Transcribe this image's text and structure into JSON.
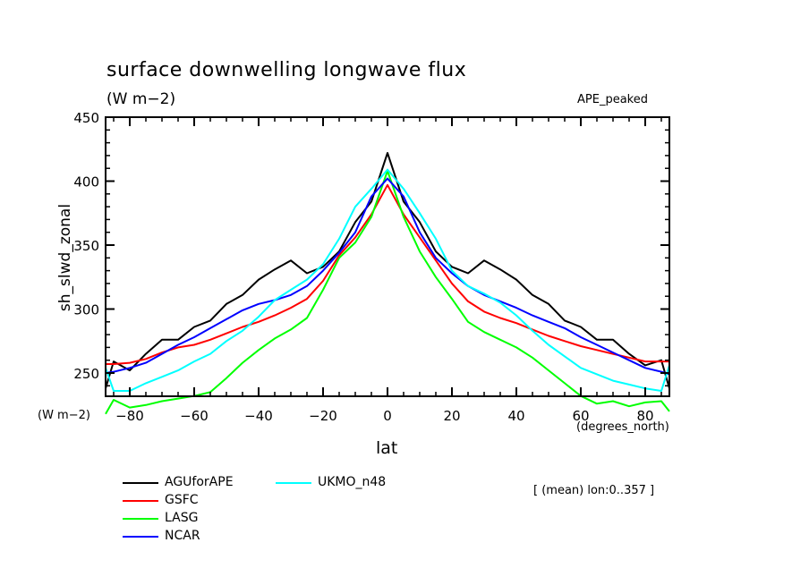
{
  "header": {
    "title": "surface downwelling longwave flux",
    "units": "(W m−2)",
    "dataset": "APE_peaked"
  },
  "footer": {
    "note": "[ (mean) lon:0..357 ]"
  },
  "chart_data": {
    "type": "line",
    "title": "surface downwelling longwave flux",
    "subtitle": "(W m−2)",
    "xlabel": "lat",
    "xunits": "(degrees_north)",
    "ylabel": "sh_slwd_zonal",
    "yunits": "(W m−2)",
    "xlim": [
      -87.5,
      87.5
    ],
    "ylim": [
      232,
      450
    ],
    "xticks": [
      -80,
      -60,
      -40,
      -20,
      0,
      20,
      40,
      60,
      80
    ],
    "xtick_labels": [
      "−80",
      "−60",
      "−40",
      "−20",
      "0",
      "20",
      "40",
      "60",
      "80"
    ],
    "yticks": [
      250,
      300,
      350,
      400,
      450
    ],
    "ytick_labels": [
      "250",
      "300",
      "350",
      "400",
      "450"
    ],
    "grid": false,
    "legend_position": "bottom-left",
    "x": [
      -87.5,
      -85,
      -80,
      -75,
      -70,
      -65,
      -60,
      -55,
      -50,
      -45,
      -40,
      -35,
      -30,
      -25,
      -20,
      -15,
      -10,
      -5,
      0,
      5,
      10,
      15,
      20,
      25,
      30,
      35,
      40,
      45,
      50,
      55,
      60,
      65,
      70,
      75,
      80,
      85,
      87.5
    ],
    "series": [
      {
        "name": "AGUforAPE",
        "color": "#000000",
        "values": [
          238,
          259,
          252,
          265,
          276,
          276,
          286,
          291,
          304,
          311,
          323,
          331,
          338,
          328,
          333,
          345,
          368,
          384,
          422,
          384,
          368,
          345,
          333,
          328,
          338,
          331,
          323,
          311,
          304,
          291,
          286,
          276,
          276,
          265,
          256,
          260,
          238
        ]
      },
      {
        "name": "GSFC",
        "color": "#ff0000",
        "values": [
          257,
          257,
          258,
          261,
          266,
          270,
          272,
          276,
          281,
          286,
          290,
          295,
          301,
          308,
          322,
          342,
          356,
          374,
          397,
          374,
          356,
          338,
          320,
          306,
          298,
          293,
          289,
          284,
          279,
          275,
          271,
          268,
          265,
          262,
          259,
          259,
          259
        ]
      },
      {
        "name": "LASG",
        "color": "#00ff00",
        "values": [
          218,
          229,
          223,
          225,
          228,
          230,
          232,
          235,
          246,
          258,
          268,
          277,
          284,
          293,
          315,
          340,
          352,
          372,
          408,
          372,
          345,
          325,
          308,
          290,
          282,
          276,
          270,
          262,
          252,
          242,
          232,
          226,
          228,
          224,
          227,
          228,
          220
        ]
      },
      {
        "name": "NCAR",
        "color": "#0000ff",
        "values": [
          250,
          251,
          254,
          258,
          265,
          272,
          278,
          285,
          292,
          299,
          304,
          307,
          311,
          318,
          330,
          344,
          360,
          388,
          402,
          388,
          360,
          340,
          328,
          318,
          311,
          306,
          301,
          295,
          290,
          285,
          278,
          272,
          266,
          260,
          254,
          251,
          249
        ]
      },
      {
        "name": "UKMO_n48",
        "color": "#00ffff",
        "values": [
          254,
          236,
          236,
          242,
          247,
          252,
          259,
          265,
          275,
          283,
          294,
          307,
          315,
          323,
          335,
          355,
          380,
          394,
          409,
          394,
          375,
          355,
          330,
          318,
          312,
          305,
          295,
          283,
          272,
          263,
          254,
          249,
          244,
          241,
          238,
          236,
          256
        ]
      }
    ]
  }
}
